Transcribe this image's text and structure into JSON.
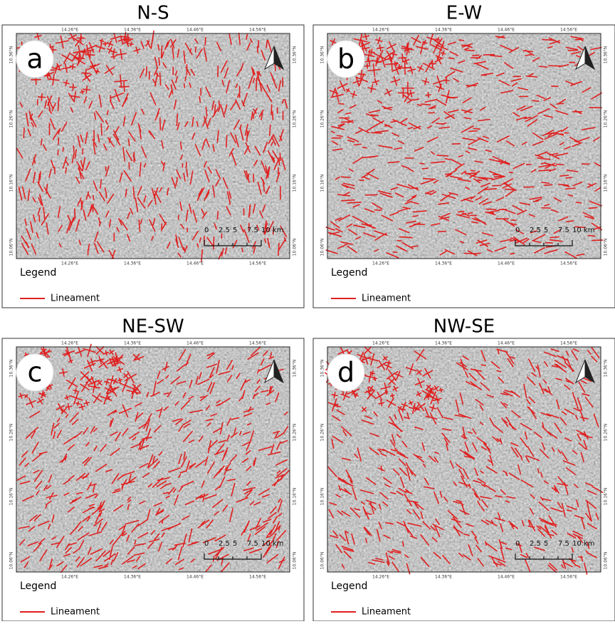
{
  "panels": [
    {
      "title": "N-S",
      "letter": "a"
    },
    {
      "title": "E-W",
      "letter": "b"
    },
    {
      "title": "NE-SW",
      "letter": "c"
    },
    {
      "title": "NW-SE",
      "letter": "d"
    }
  ],
  "coordinates": {
    "top": [
      "14.26°E",
      "14.36°E",
      "14.46°E",
      "14.56°E"
    ],
    "bottom": [
      "14.26°E",
      "14.36°E",
      "14.46°E",
      "14.56°E"
    ],
    "left": [
      "10.36°N",
      "10.26°N",
      "10.16°N",
      "10.06°N"
    ],
    "right": [
      "10.36°N",
      "10.26°N",
      "10.16°N",
      "10.06°N"
    ]
  },
  "scale_bar": [
    "0",
    "2.5",
    "5",
    "7.5",
    "10 km"
  ],
  "legend": {
    "title": "Legend",
    "item": "Lineament"
  }
}
